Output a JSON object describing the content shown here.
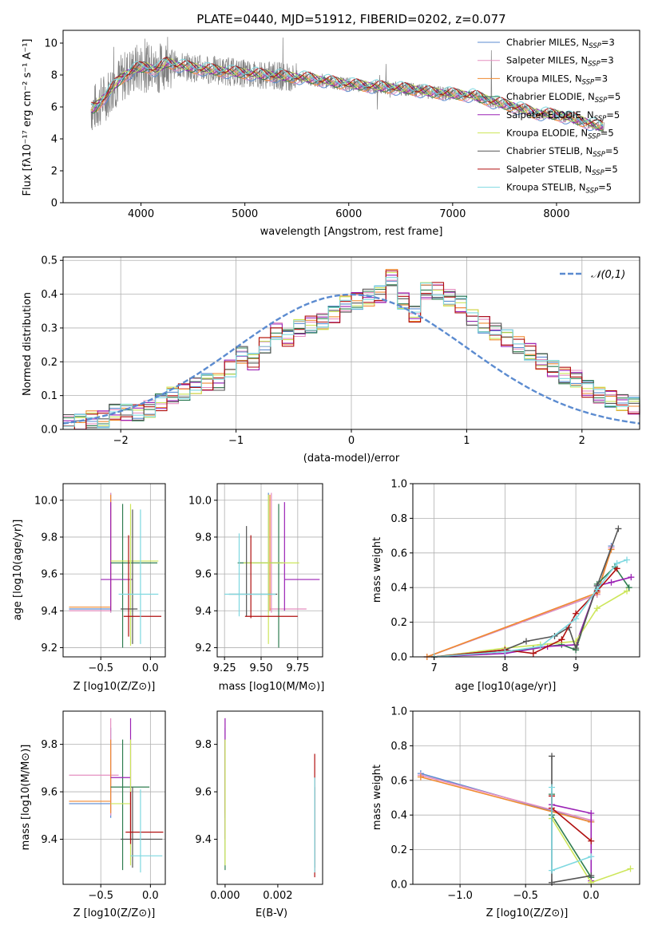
{
  "figure_title": "PLATE=0440, MJD=51912, FIBERID=0202, z=0.077",
  "colors": {
    "chabrier_miles": "#5b8bd0",
    "salpeter_miles": "#e58fc0",
    "kroupa_miles": "#f08a30",
    "chabrier_elodie": "#2e7d4f",
    "salpeter_elodie": "#9b22b5",
    "kroupa_elodie": "#cde65a",
    "chabrier_stelib": "#555555",
    "salpeter_stelib": "#b00f0f",
    "kroupa_stelib": "#7ed8e0",
    "data": "#808080",
    "normal": "#5b8bd0"
  },
  "chart_data": [
    {
      "id": "spectrum",
      "type": "line",
      "title": "PLATE=0440, MJD=51912, FIBERID=0202, z=0.077",
      "xlabel": "wavelength [Angstrom, rest frame]",
      "ylabel": "Flux [fλ10⁻¹⁷ erg cm⁻² s⁻¹ A⁻¹]",
      "xlim": [
        3250,
        8800
      ],
      "ylim": [
        0,
        10.8
      ],
      "xticks": [
        4000,
        5000,
        6000,
        7000,
        8000
      ],
      "yticks": [
        0,
        2,
        4,
        6,
        8,
        10
      ],
      "grid": false,
      "legend_position": "top-right",
      "series": [
        {
          "name": "Chabrier MILES, N_SSP=3",
          "color": "#5b8bd0"
        },
        {
          "name": "Salpeter MILES, N_SSP=3",
          "color": "#e58fc0"
        },
        {
          "name": "Kroupa MILES, N_SSP=3",
          "color": "#f08a30"
        },
        {
          "name": "Chabrier ELODIE, N_SSP=5",
          "color": "#2e7d4f"
        },
        {
          "name": "Salpeter ELODIE, N_SSP=5",
          "color": "#9b22b5"
        },
        {
          "name": "Kroupa ELODIE, N_SSP=5",
          "color": "#cde65a"
        },
        {
          "name": "Chabrier STELIB, N_SSP=5",
          "color": "#555555"
        },
        {
          "name": "Salpeter STELIB, N_SSP=5",
          "color": "#b00f0f"
        },
        {
          "name": "Kroupa STELIB, N_SSP=5",
          "color": "#7ed8e0"
        }
      ],
      "model_x": [
        3550,
        3650,
        3750,
        3850,
        3950,
        4050,
        4150,
        4250,
        4350,
        4450,
        4550,
        4700,
        4850,
        5000,
        5200,
        5400,
        5600,
        5800,
        6000,
        6200,
        6400,
        6600,
        6800,
        7000,
        7200,
        7400,
        7600,
        7800,
        8000,
        8200,
        8400
      ],
      "model_y": [
        5.9,
        6.6,
        7.4,
        8.0,
        8.4,
        8.5,
        8.3,
        8.8,
        8.6,
        8.5,
        8.4,
        8.3,
        8.2,
        8.1,
        8.0,
        7.9,
        7.8,
        7.6,
        7.4,
        7.3,
        7.2,
        7.1,
        6.9,
        6.8,
        6.7,
        6.3,
        6.0,
        5.6,
        5.5,
        5.2,
        4.8
      ]
    },
    {
      "id": "residuals",
      "type": "line",
      "xlabel": "(data-model)/error",
      "ylabel": "Normed distribution",
      "xlim": [
        -2.5,
        2.5
      ],
      "ylim": [
        0,
        0.51
      ],
      "xticks": [
        -2,
        -1,
        0,
        1,
        2
      ],
      "yticks": [
        0.0,
        0.1,
        0.2,
        0.3,
        0.4,
        0.5
      ],
      "grid": true,
      "legend_position": "top-right",
      "legend": "𝒩(0,1)",
      "bin_width": 0.1,
      "hist_centers_from": -2.45,
      "hist_values": [
        0.02,
        0.02,
        0.03,
        0.03,
        0.05,
        0.05,
        0.05,
        0.06,
        0.08,
        0.1,
        0.11,
        0.13,
        0.14,
        0.14,
        0.18,
        0.22,
        0.2,
        0.25,
        0.29,
        0.27,
        0.3,
        0.31,
        0.32,
        0.34,
        0.37,
        0.38,
        0.39,
        0.4,
        0.45,
        0.38,
        0.34,
        0.41,
        0.41,
        0.39,
        0.37,
        0.33,
        0.31,
        0.29,
        0.27,
        0.25,
        0.23,
        0.2,
        0.18,
        0.16,
        0.15,
        0.12,
        0.1,
        0.09,
        0.08,
        0.07,
        0.06
      ]
    },
    {
      "id": "age_vs_Z",
      "type": "scatter",
      "xlabel": "Z [log10(Z/Z⊙)]",
      "ylabel": "age  [log10(age/yr)]",
      "xlim": [
        -0.88,
        0.15
      ],
      "ylim": [
        9.15,
        10.09
      ],
      "xticks": [
        -0.5,
        0.0
      ],
      "yticks": [
        9.2,
        9.4,
        9.6,
        9.8,
        10.0
      ],
      "grid": true,
      "points": [
        {
          "x": -0.4,
          "y": 9.41,
          "xerr": [
            0.42,
            0.0
          ],
          "yerr": [
            0.02,
            0.63
          ],
          "color": "#5b8bd0"
        },
        {
          "x": -0.4,
          "y": 9.4,
          "xerr": [
            0.42,
            0.0
          ],
          "yerr": [
            0.01,
            0.64
          ],
          "color": "#e58fc0"
        },
        {
          "x": -0.4,
          "y": 9.42,
          "xerr": [
            0.42,
            0.0
          ],
          "yerr": [
            0.02,
            0.61
          ],
          "color": "#f08a30"
        },
        {
          "x": -0.28,
          "y": 9.66,
          "xerr": [
            0.12,
            0.35
          ],
          "yerr": [
            0.46,
            0.32
          ],
          "color": "#2e7d4f"
        },
        {
          "x": -0.4,
          "y": 9.57,
          "xerr": [
            0.1,
            0.22
          ],
          "yerr": [
            0.17,
            0.42
          ],
          "color": "#9b22b5"
        },
        {
          "x": -0.2,
          "y": 9.67,
          "xerr": [
            0.2,
            0.28
          ],
          "yerr": [
            0.46,
            0.31
          ],
          "color": "#cde65a"
        },
        {
          "x": -0.18,
          "y": 9.41,
          "xerr": [
            0.12,
            0.05
          ],
          "yerr": [
            0.19,
            0.54
          ],
          "color": "#555555"
        },
        {
          "x": -0.22,
          "y": 9.37,
          "xerr": [
            0.05,
            0.33
          ],
          "yerr": [
            0.11,
            0.44
          ],
          "color": "#b00f0f"
        },
        {
          "x": -0.1,
          "y": 9.49,
          "xerr": [
            0.22,
            0.18
          ],
          "yerr": [
            0.27,
            0.46
          ],
          "color": "#7ed8e0"
        }
      ]
    },
    {
      "id": "age_vs_mass",
      "type": "scatter",
      "xlabel": "mass [log10(M/M⊙)]",
      "ylabel": "",
      "xlim": [
        9.2,
        9.92
      ],
      "ylim": [
        9.15,
        10.09
      ],
      "xticks": [
        9.25,
        9.5,
        9.75
      ],
      "yticks": [
        9.2,
        9.4,
        9.6,
        9.8,
        10.0
      ],
      "grid": true,
      "points": [
        {
          "x": 9.55,
          "y": 9.41,
          "xerr": [
            0.0,
            0.0
          ],
          "yerr": [
            0.02,
            0.63
          ],
          "color": "#5b8bd0"
        },
        {
          "x": 9.57,
          "y": 9.41,
          "xerr": [
            0.01,
            0.24
          ],
          "yerr": [
            0.02,
            0.63
          ],
          "color": "#e58fc0"
        },
        {
          "x": 9.56,
          "y": 9.42,
          "xerr": [
            0.0,
            0.0
          ],
          "yerr": [
            0.02,
            0.61
          ],
          "color": "#f08a30"
        },
        {
          "x": 9.62,
          "y": 9.66,
          "xerr": [
            0.28,
            0.03
          ],
          "yerr": [
            0.46,
            0.32
          ],
          "color": "#2e7d4f"
        },
        {
          "x": 9.66,
          "y": 9.57,
          "xerr": [
            0.0,
            0.24
          ],
          "yerr": [
            0.17,
            0.42
          ],
          "color": "#9b22b5"
        },
        {
          "x": 9.55,
          "y": 9.66,
          "xerr": [
            0.17,
            0.21
          ],
          "yerr": [
            0.44,
            0.37
          ],
          "color": "#cde65a"
        },
        {
          "x": 9.4,
          "y": 9.49,
          "xerr": [
            0.12,
            0.21
          ],
          "yerr": [
            0.12,
            0.37
          ],
          "color": "#555555"
        },
        {
          "x": 9.43,
          "y": 9.37,
          "xerr": [
            0.04,
            0.32
          ],
          "yerr": [
            0.01,
            0.44
          ],
          "color": "#b00f0f"
        },
        {
          "x": 9.35,
          "y": 9.49,
          "xerr": [
            0.1,
            0.25
          ],
          "yerr": [
            0.12,
            0.33
          ],
          "color": "#7ed8e0"
        }
      ]
    },
    {
      "id": "weight_vs_age",
      "type": "line",
      "xlabel": "age  [log10(age/yr)]",
      "ylabel": "mass weight",
      "xlim": [
        6.7,
        9.9
      ],
      "ylim": [
        0.0,
        1.0
      ],
      "xticks": [
        7,
        8,
        9
      ],
      "yticks": [
        0.0,
        0.2,
        0.4,
        0.6,
        0.8,
        1.0
      ],
      "grid": true,
      "series": [
        {
          "color": "#5b8bd0",
          "x": [
            6.9,
            9.3,
            9.5
          ],
          "y": [
            0.0,
            0.36,
            0.64
          ]
        },
        {
          "color": "#e58fc0",
          "x": [
            6.9,
            9.3,
            9.5
          ],
          "y": [
            0.0,
            0.36,
            0.63
          ]
        },
        {
          "color": "#f08a30",
          "x": [
            6.9,
            9.3,
            9.5
          ],
          "y": [
            0.0,
            0.37,
            0.62
          ]
        },
        {
          "color": "#2e7d4f",
          "x": [
            7.0,
            8.0,
            8.4,
            8.8,
            9.0,
            9.3,
            9.55,
            9.75
          ],
          "y": [
            0.0,
            0.03,
            0.05,
            0.07,
            0.04,
            0.42,
            0.52,
            0.4
          ]
        },
        {
          "color": "#9b22b5",
          "x": [
            7.0,
            8.0,
            8.6,
            9.0,
            9.3,
            9.5,
            9.78
          ],
          "y": [
            0.0,
            0.02,
            0.06,
            0.07,
            0.41,
            0.43,
            0.46
          ]
        },
        {
          "color": "#cde65a",
          "x": [
            7.0,
            8.0,
            8.5,
            9.0,
            9.3,
            9.72
          ],
          "y": [
            0.0,
            0.05,
            0.07,
            0.09,
            0.28,
            0.38
          ]
        },
        {
          "color": "#555555",
          "x": [
            7.0,
            8.0,
            8.3,
            8.7,
            8.9,
            9.0,
            9.3,
            9.6
          ],
          "y": [
            0.0,
            0.04,
            0.09,
            0.12,
            0.17,
            0.05,
            0.41,
            0.74
          ]
        },
        {
          "color": "#b00f0f",
          "x": [
            7.0,
            8.0,
            8.4,
            8.8,
            9.0,
            9.3,
            9.58
          ],
          "y": [
            0.0,
            0.04,
            0.02,
            0.1,
            0.25,
            0.38,
            0.51
          ]
        },
        {
          "color": "#7ed8e0",
          "x": [
            7.0,
            8.0,
            8.5,
            9.0,
            9.3,
            9.58,
            9.72
          ],
          "y": [
            0.0,
            0.03,
            0.06,
            0.22,
            0.39,
            0.54,
            0.56
          ]
        }
      ]
    },
    {
      "id": "mass_vs_Z",
      "type": "scatter",
      "xlabel": "Z [log10(Z/Z⊙)]",
      "ylabel": "mass [log10(M/M⊙)]",
      "xlim": [
        -0.88,
        0.15
      ],
      "ylim": [
        9.21,
        9.94
      ],
      "xticks": [
        -0.5,
        0.0
      ],
      "yticks": [
        9.4,
        9.6,
        9.8
      ],
      "grid": true,
      "points": [
        {
          "x": -0.4,
          "y": 9.55,
          "xerr": [
            0.42,
            0.0
          ],
          "yerr": [
            0.06,
            0.32
          ],
          "color": "#5b8bd0"
        },
        {
          "x": -0.4,
          "y": 9.67,
          "xerr": [
            0.42,
            0.08
          ],
          "yerr": [
            0.17,
            0.24
          ],
          "color": "#e58fc0"
        },
        {
          "x": -0.4,
          "y": 9.56,
          "xerr": [
            0.42,
            0.0
          ],
          "yerr": [
            0.05,
            0.26
          ],
          "color": "#f08a30"
        },
        {
          "x": -0.28,
          "y": 9.62,
          "xerr": [
            0.12,
            0.27
          ],
          "yerr": [
            0.35,
            0.2
          ],
          "color": "#2e7d4f"
        },
        {
          "x": -0.2,
          "y": 9.66,
          "xerr": [
            0.2,
            0.0
          ],
          "yerr": [
            0.26,
            0.25
          ],
          "color": "#9b22b5"
        },
        {
          "x": -0.2,
          "y": 9.55,
          "xerr": [
            0.2,
            0.0
          ],
          "yerr": [
            0.26,
            0.27
          ],
          "color": "#cde65a"
        },
        {
          "x": -0.18,
          "y": 9.4,
          "xerr": [
            0.12,
            0.3
          ],
          "yerr": [
            0.12,
            0.22
          ],
          "color": "#555555"
        },
        {
          "x": -0.2,
          "y": 9.43,
          "xerr": [
            0.05,
            0.33
          ],
          "yerr": [
            0.05,
            0.17
          ],
          "color": "#b00f0f"
        },
        {
          "x": -0.1,
          "y": 9.33,
          "xerr": [
            0.1,
            0.22
          ],
          "yerr": [
            0.07,
            0.28
          ],
          "color": "#7ed8e0"
        }
      ]
    },
    {
      "id": "mass_vs_ebv",
      "type": "scatter",
      "xlabel": "E(B-V)",
      "ylabel": "",
      "xlim": [
        -0.0003,
        0.0037
      ],
      "ylim": [
        9.21,
        9.94
      ],
      "xticks": [
        0.0,
        0.002
      ],
      "yticks": [
        9.4,
        9.6,
        9.8
      ],
      "grid": false,
      "points": [
        {
          "x": 0.0,
          "y": 9.55,
          "yerr": [
            0.06,
            0.32
          ],
          "color": "#5b8bd0"
        },
        {
          "x": 0.0,
          "y": 9.67,
          "yerr": [
            0.17,
            0.24
          ],
          "color": "#e58fc0"
        },
        {
          "x": 0.0,
          "y": 9.56,
          "yerr": [
            0.05,
            0.26
          ],
          "color": "#f08a30"
        },
        {
          "x": 0.0,
          "y": 9.62,
          "yerr": [
            0.35,
            0.2
          ],
          "color": "#2e7d4f"
        },
        {
          "x": 0.0,
          "y": 9.66,
          "yerr": [
            0.26,
            0.25
          ],
          "color": "#9b22b5"
        },
        {
          "x": 0.0,
          "y": 9.55,
          "yerr": [
            0.26,
            0.27
          ],
          "color": "#cde65a"
        },
        {
          "x": 0.0034,
          "y": 9.4,
          "yerr": [
            0.12,
            0.22
          ],
          "color": "#555555"
        },
        {
          "x": 0.0034,
          "y": 9.66,
          "yerr": [
            0.42,
            0.1
          ],
          "color": "#b00f0f"
        },
        {
          "x": 0.0034,
          "y": 9.33,
          "yerr": [
            0.07,
            0.33
          ],
          "color": "#7ed8e0"
        }
      ]
    },
    {
      "id": "weight_vs_Z",
      "type": "line",
      "xlabel": "Z [log10(Z/Z⊙)]",
      "ylabel": "mass weight",
      "xlim": [
        -1.36,
        0.37
      ],
      "ylim": [
        0.0,
        1.0
      ],
      "xticks": [
        -1.0,
        -0.5,
        0.0
      ],
      "yticks": [
        0.0,
        0.2,
        0.4,
        0.6,
        0.8,
        1.0
      ],
      "grid": true,
      "series": [
        {
          "color": "#5b8bd0",
          "x": [
            -1.3,
            0.0
          ],
          "y": [
            0.64,
            0.36
          ]
        },
        {
          "color": "#e58fc0",
          "x": [
            -1.3,
            0.0
          ],
          "y": [
            0.63,
            0.37
          ]
        },
        {
          "color": "#f08a30",
          "x": [
            -1.3,
            0.0
          ],
          "y": [
            0.62,
            0.36
          ]
        },
        {
          "color": "#2e7d4f",
          "x": [
            -0.3,
            -0.3,
            0.0
          ],
          "y": [
            0.52,
            0.4,
            0.04
          ]
        },
        {
          "color": "#9b22b5",
          "x": [
            -0.3,
            0.0,
            0.0
          ],
          "y": [
            0.46,
            0.41,
            0.02
          ]
        },
        {
          "color": "#cde65a",
          "x": [
            -0.3,
            0.0,
            0.3
          ],
          "y": [
            0.38,
            0.01,
            0.09
          ]
        },
        {
          "color": "#555555",
          "x": [
            -0.3,
            -0.3,
            0.0
          ],
          "y": [
            0.74,
            0.01,
            0.05
          ]
        },
        {
          "color": "#b00f0f",
          "x": [
            -0.3,
            -0.3,
            0.0
          ],
          "y": [
            0.51,
            0.44,
            0.25
          ]
        },
        {
          "color": "#7ed8e0",
          "x": [
            -0.3,
            -0.3,
            0.0
          ],
          "y": [
            0.56,
            0.08,
            0.16
          ]
        }
      ]
    }
  ]
}
